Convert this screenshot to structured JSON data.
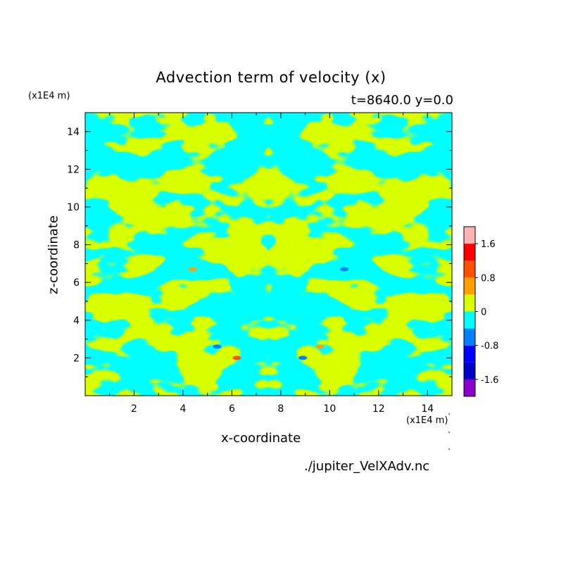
{
  "colors": {
    "positive": "#d8ff00",
    "negative": "#00ffff",
    "levels": [
      "#8b00c8",
      "#0000c8",
      "#0000ff",
      "#0080ff",
      "#00ffff",
      "#d8ff00",
      "#ffa000",
      "#ff5000",
      "#ff0000",
      "#ffb4b4"
    ]
  },
  "chart_data": {
    "type": "heatmap",
    "title": "Advection term of velocity (x)",
    "subtitle": "t=8640.0 y=0.0",
    "xlabel": "x-coordinate",
    "ylabel": "z-coordinate",
    "x_unit": "(x1E4 m)",
    "y_unit": "(x1E4 m)",
    "xlim": [
      0,
      15
    ],
    "ylim": [
      0,
      15
    ],
    "x_ticks": [
      2,
      4,
      6,
      8,
      10,
      12,
      14
    ],
    "y_ticks": [
      2,
      4,
      6,
      8,
      10,
      12,
      14
    ],
    "colorbar": {
      "tick_labels": [
        "1.6",
        "0.8",
        "0",
        "-0.8",
        "-1.6"
      ],
      "tick_values": [
        1.6,
        0.8,
        0,
        -0.8,
        -1.6
      ],
      "range": [
        -2.0,
        2.0
      ],
      "levels": [
        -2.0,
        -1.6,
        -1.2,
        -0.8,
        -0.4,
        0,
        0.4,
        0.8,
        1.2,
        1.6,
        2.0
      ]
    },
    "grid": false,
    "legend_placement": "right",
    "symmetric_about_x": 7.5
  },
  "footer": "./jupiter_VelXAdv.nc"
}
